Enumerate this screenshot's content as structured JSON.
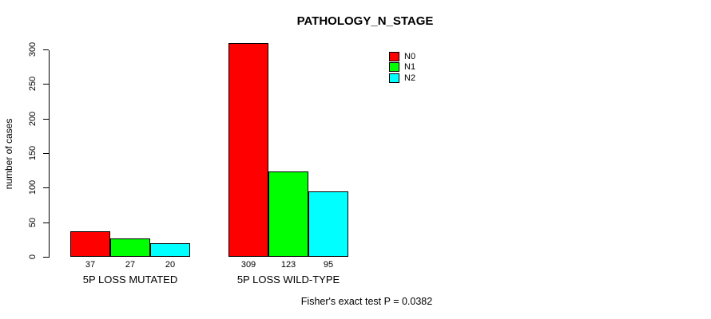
{
  "chart_data": {
    "type": "bar",
    "title": "PATHOLOGY_N_STAGE",
    "ylabel": "number of cases",
    "xlabel": "",
    "ylim": [
      0,
      300
    ],
    "yticks": [
      0,
      50,
      100,
      150,
      200,
      250,
      300
    ],
    "grid": false,
    "legend_position": "top-right",
    "series": [
      {
        "name": "N0",
        "color": "#FF0000"
      },
      {
        "name": "N1",
        "color": "#00FF00"
      },
      {
        "name": "N2",
        "color": "#00FFFF"
      }
    ],
    "groups": [
      {
        "label": "5P LOSS MUTATED",
        "values": [
          37,
          27,
          20
        ]
      },
      {
        "label": "5P LOSS WILD-TYPE",
        "values": [
          309,
          123,
          95
        ]
      }
    ],
    "annotation": "Fisher's exact test P = 0.0382"
  }
}
